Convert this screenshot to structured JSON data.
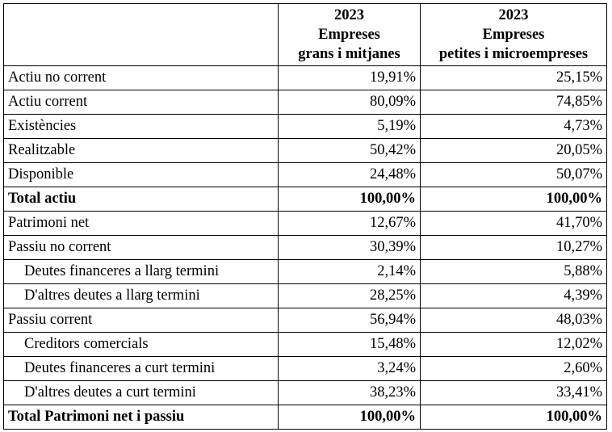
{
  "header": {
    "col1": {
      "year": "2023",
      "line1": "Empreses",
      "line2": "grans i mitjanes"
    },
    "col2": {
      "year": "2023",
      "line1": "Empreses",
      "line2": "petites i microempreses"
    }
  },
  "rows": [
    {
      "label": "Actiu no corrent",
      "v1": "19,91%",
      "v2": "25,15%"
    },
    {
      "label": "Actiu corrent",
      "v1": "80,09%",
      "v2": "74,85%"
    },
    {
      "label": "Existències",
      "v1": "5,19%",
      "v2": "4,73%"
    },
    {
      "label": "Realitzable",
      "v1": "50,42%",
      "v2": "20,05%"
    },
    {
      "label": "Disponible",
      "v1": "24,48%",
      "v2": "50,07%"
    },
    {
      "label": "Total actiu",
      "v1": "100,00%",
      "v2": "100,00%"
    },
    {
      "label": "Patrimoni net",
      "v1": "12,67%",
      "v2": "41,70%"
    },
    {
      "label": "Passiu no corrent",
      "v1": "30,39%",
      "v2": "10,27%"
    },
    {
      "label": "Deutes financeres a llarg termini",
      "v1": "2,14%",
      "v2": "5,88%"
    },
    {
      "label": "D'altres deutes a llarg termini",
      "v1": "28,25%",
      "v2": "4,39%"
    },
    {
      "label": "Passiu corrent",
      "v1": "56,94%",
      "v2": "48,03%"
    },
    {
      "label": "Creditors comercials",
      "v1": "15,48%",
      "v2": "12,02%"
    },
    {
      "label": "Deutes financeres a curt termini",
      "v1": "3,24%",
      "v2": "2,60%"
    },
    {
      "label": "D'altres deutes a curt termini",
      "v1": "38,23%",
      "v2": "33,41%"
    },
    {
      "label": "Total Patrimoni net i passiu",
      "v1": "100,00%",
      "v2": "100,00%"
    }
  ]
}
